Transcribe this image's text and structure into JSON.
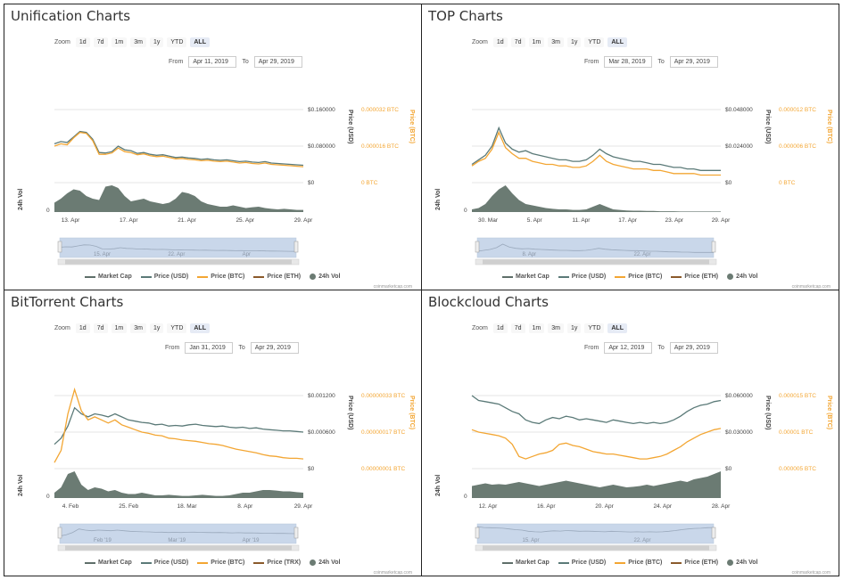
{
  "colors": {
    "market_cap": "#5f6f6a",
    "price_usd": "#5b7a78",
    "price_btc": "#f3a633",
    "price_eth": "#8b5a2b",
    "volume": "#6b7b73",
    "navigator_fill": "#c9d7ea"
  },
  "zoom_label": "Zoom",
  "zoom_buttons": [
    "1d",
    "7d",
    "1m",
    "3m",
    "1y",
    "YTD",
    "ALL"
  ],
  "zoom_active": "ALL",
  "from_label": "From",
  "to_label": "To",
  "axis_label_usd": "Price (USD)",
  "axis_label_btc": "Price (BTC)",
  "vol_label": "24h Vol",
  "vol_zero": "0",
  "credit": "coinmarketcap.com",
  "chart_data": [
    {
      "type": "line",
      "title": "Unification Charts",
      "from": "Apr 11, 2019",
      "to": "Apr 29, 2019",
      "usd_ticks": [
        "$0.160000",
        "$0.080000",
        "$0"
      ],
      "btc_ticks": [
        "0.000032 BTC",
        "0.000016 BTC",
        "0 BTC"
      ],
      "usd_range": [
        0,
        0.16
      ],
      "x_ticks": [
        "13. Apr",
        "17. Apr",
        "21. Apr",
        "25. Apr",
        "29. Apr"
      ],
      "nav_ticks": [
        "15. Apr",
        "22. Apr",
        "Apr"
      ],
      "legend": [
        "Market Cap",
        "Price (USD)",
        "Price (BTC)",
        "Price (ETH)",
        "24h Vol"
      ],
      "series": [
        {
          "name": "Price (USD)",
          "values": [
            0.085,
            0.09,
            0.088,
            0.1,
            0.112,
            0.11,
            0.095,
            0.066,
            0.065,
            0.068,
            0.08,
            0.072,
            0.07,
            0.064,
            0.066,
            0.062,
            0.06,
            0.061,
            0.058,
            0.055,
            0.056,
            0.054,
            0.053,
            0.051,
            0.052,
            0.05,
            0.049,
            0.05,
            0.048,
            0.046,
            0.047,
            0.045,
            0.044,
            0.046,
            0.043,
            0.042,
            0.041,
            0.04,
            0.039,
            0.038
          ]
        },
        {
          "name": "Price (BTC)",
          "values": [
            0.08,
            0.085,
            0.083,
            0.098,
            0.11,
            0.108,
            0.092,
            0.062,
            0.062,
            0.065,
            0.076,
            0.068,
            0.066,
            0.061,
            0.063,
            0.059,
            0.057,
            0.058,
            0.055,
            0.052,
            0.053,
            0.051,
            0.05,
            0.048,
            0.049,
            0.047,
            0.046,
            0.047,
            0.045,
            0.043,
            0.044,
            0.042,
            0.041,
            0.043,
            0.04,
            0.039,
            0.038,
            0.037,
            0.036,
            0.035
          ]
        }
      ],
      "volume": [
        0.35,
        0.5,
        0.7,
        0.85,
        0.8,
        0.6,
        0.5,
        0.45,
        0.95,
        1.0,
        0.9,
        0.6,
        0.4,
        0.45,
        0.5,
        0.4,
        0.35,
        0.3,
        0.35,
        0.5,
        0.75,
        0.7,
        0.6,
        0.4,
        0.3,
        0.25,
        0.2,
        0.2,
        0.25,
        0.2,
        0.15,
        0.18,
        0.2,
        0.15,
        0.12,
        0.1,
        0.12,
        0.1,
        0.08,
        0.08
      ]
    },
    {
      "type": "line",
      "title": "TOP Charts",
      "from": "Mar 28, 2019",
      "to": "Apr 29, 2019",
      "usd_ticks": [
        "$0.048000",
        "$0.024000",
        "$0"
      ],
      "btc_ticks": [
        "0.000012 BTC",
        "0.000006 BTC",
        "0 BTC"
      ],
      "usd_range": [
        0,
        0.048
      ],
      "x_ticks": [
        "30. Mar",
        "5. Apr",
        "11. Apr",
        "17. Apr",
        "23. Apr",
        "29. Apr"
      ],
      "nav_ticks": [
        "8. Apr",
        "22. Apr"
      ],
      "legend": [
        "Market Cap",
        "Price (USD)",
        "Price (BTC)",
        "Price (ETH)",
        "24h Vol"
      ],
      "series": [
        {
          "name": "Price (USD)",
          "values": [
            0.012,
            0.015,
            0.018,
            0.024,
            0.036,
            0.026,
            0.022,
            0.02,
            0.021,
            0.019,
            0.018,
            0.017,
            0.016,
            0.015,
            0.015,
            0.014,
            0.014,
            0.015,
            0.018,
            0.022,
            0.019,
            0.017,
            0.016,
            0.015,
            0.014,
            0.014,
            0.013,
            0.012,
            0.012,
            0.011,
            0.01,
            0.01,
            0.009,
            0.009,
            0.008,
            0.008,
            0.008,
            0.008
          ]
        },
        {
          "name": "Price (BTC)",
          "values": [
            0.011,
            0.014,
            0.016,
            0.022,
            0.033,
            0.023,
            0.019,
            0.016,
            0.016,
            0.014,
            0.013,
            0.012,
            0.012,
            0.011,
            0.011,
            0.01,
            0.01,
            0.011,
            0.014,
            0.018,
            0.014,
            0.012,
            0.011,
            0.01,
            0.009,
            0.009,
            0.009,
            0.008,
            0.008,
            0.007,
            0.006,
            0.006,
            0.006,
            0.006,
            0.005,
            0.005,
            0.005,
            0.005
          ]
        }
      ],
      "volume": [
        0.1,
        0.15,
        0.3,
        0.6,
        0.85,
        1.0,
        0.7,
        0.45,
        0.3,
        0.25,
        0.2,
        0.15,
        0.12,
        0.1,
        0.1,
        0.08,
        0.08,
        0.1,
        0.2,
        0.3,
        0.2,
        0.1,
        0.08,
        0.06,
        0.05,
        0.05,
        0.04,
        0.04,
        0.03,
        0.03,
        0.03,
        0.02,
        0.02,
        0.02,
        0.02,
        0.02,
        0.02,
        0.02
      ]
    },
    {
      "type": "line",
      "title": "BitTorrent Charts",
      "from": "Jan 31, 2019",
      "to": "Apr 29, 2019",
      "usd_ticks": [
        "$0.001200",
        "$0.000600",
        "$0"
      ],
      "btc_ticks": [
        "0.00000033 BTC",
        "0.00000017 BTC",
        "0.00000001 BTC"
      ],
      "usd_range": [
        0,
        0.0012
      ],
      "x_ticks": [
        "4. Feb",
        "25. Feb",
        "18. Mar",
        "8. Apr",
        "29. Apr"
      ],
      "nav_ticks": [
        "Feb '19",
        "Mar '19",
        "Apr '19"
      ],
      "legend": [
        "Market Cap",
        "Price (USD)",
        "Price (BTC)",
        "Price (TRX)",
        "24h Vol"
      ],
      "series": [
        {
          "name": "Price (USD)",
          "values": [
            0.0004,
            0.0005,
            0.0007,
            0.001,
            0.0009,
            0.00085,
            0.0009,
            0.00088,
            0.00085,
            0.0009,
            0.00085,
            0.0008,
            0.00078,
            0.00076,
            0.00075,
            0.00072,
            0.00073,
            0.0007,
            0.00071,
            0.0007,
            0.00072,
            0.00073,
            0.00071,
            0.0007,
            0.00069,
            0.0007,
            0.00068,
            0.00067,
            0.00068,
            0.00066,
            0.00067,
            0.00065,
            0.00064,
            0.00063,
            0.00062,
            0.00062,
            0.00061,
            0.0006
          ]
        },
        {
          "name": "Price (BTC)",
          "values": [
            0.0001,
            0.0003,
            0.0009,
            0.0013,
            0.00095,
            0.0008,
            0.00085,
            0.0008,
            0.00075,
            0.0008,
            0.00072,
            0.00068,
            0.00064,
            0.0006,
            0.00058,
            0.00055,
            0.00054,
            0.0005,
            0.00049,
            0.00047,
            0.00046,
            0.00045,
            0.00043,
            0.00041,
            0.0004,
            0.00038,
            0.00035,
            0.00032,
            0.0003,
            0.00028,
            0.00026,
            0.00023,
            0.00021,
            0.0002,
            0.00018,
            0.00017,
            0.00017,
            0.00016
          ]
        }
      ],
      "volume": [
        0.2,
        0.4,
        0.9,
        1.0,
        0.5,
        0.3,
        0.4,
        0.35,
        0.25,
        0.3,
        0.2,
        0.15,
        0.15,
        0.2,
        0.15,
        0.1,
        0.1,
        0.12,
        0.1,
        0.08,
        0.08,
        0.1,
        0.12,
        0.1,
        0.08,
        0.08,
        0.1,
        0.15,
        0.2,
        0.2,
        0.25,
        0.3,
        0.3,
        0.28,
        0.25,
        0.25,
        0.22,
        0.2
      ]
    },
    {
      "type": "line",
      "title": "Blockcloud Charts",
      "from": "Apr 12, 2019",
      "to": "Apr 29, 2019",
      "usd_ticks": [
        "$0.060000",
        "$0.030000",
        "$0"
      ],
      "btc_ticks": [
        "0.000015 BTC",
        "0.00001 BTC",
        "0.000005 BTC"
      ],
      "usd_range": [
        0,
        0.06
      ],
      "x_ticks": [
        "12. Apr",
        "16. Apr",
        "20. Apr",
        "24. Apr",
        "28. Apr"
      ],
      "nav_ticks": [
        "15. Apr",
        "22. Apr"
      ],
      "legend": [
        "Market Cap",
        "Price (USD)",
        "Price (BTC)",
        "Price (ETH)",
        "24h Vol"
      ],
      "series": [
        {
          "name": "Price (USD)",
          "values": [
            0.06,
            0.056,
            0.055,
            0.054,
            0.053,
            0.05,
            0.047,
            0.045,
            0.04,
            0.038,
            0.037,
            0.04,
            0.042,
            0.041,
            0.043,
            0.042,
            0.04,
            0.041,
            0.04,
            0.039,
            0.038,
            0.04,
            0.039,
            0.038,
            0.037,
            0.038,
            0.037,
            0.038,
            0.037,
            0.038,
            0.04,
            0.043,
            0.047,
            0.05,
            0.052,
            0.053,
            0.055,
            0.056
          ]
        },
        {
          "name": "Price (BTC)",
          "values": [
            0.032,
            0.03,
            0.029,
            0.028,
            0.027,
            0.025,
            0.02,
            0.01,
            0.008,
            0.01,
            0.012,
            0.013,
            0.015,
            0.02,
            0.021,
            0.019,
            0.018,
            0.016,
            0.014,
            0.013,
            0.012,
            0.012,
            0.011,
            0.01,
            0.009,
            0.008,
            0.008,
            0.009,
            0.01,
            0.012,
            0.015,
            0.018,
            0.022,
            0.025,
            0.028,
            0.03,
            0.032,
            0.033
          ]
        }
      ],
      "volume": [
        0.45,
        0.5,
        0.55,
        0.5,
        0.52,
        0.5,
        0.55,
        0.6,
        0.55,
        0.5,
        0.45,
        0.5,
        0.55,
        0.6,
        0.65,
        0.6,
        0.55,
        0.5,
        0.45,
        0.4,
        0.45,
        0.5,
        0.45,
        0.4,
        0.42,
        0.45,
        0.5,
        0.45,
        0.5,
        0.55,
        0.6,
        0.65,
        0.6,
        0.7,
        0.75,
        0.8,
        0.9,
        1.0
      ]
    }
  ]
}
